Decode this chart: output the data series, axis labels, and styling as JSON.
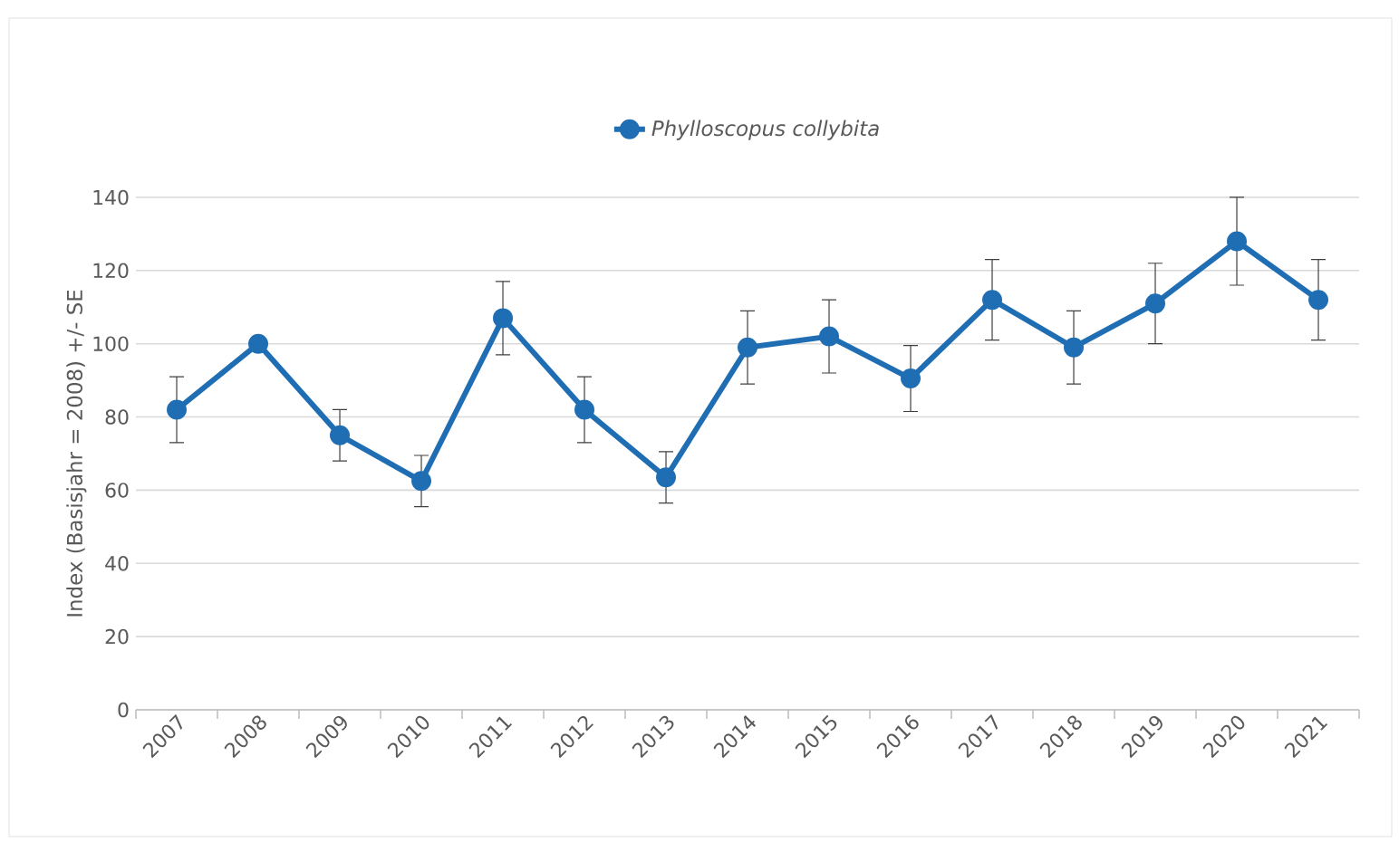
{
  "chart_data": {
    "type": "line",
    "categories": [
      "2007",
      "2008",
      "2009",
      "2010",
      "2011",
      "2012",
      "2013",
      "2014",
      "2015",
      "2016",
      "2017",
      "2018",
      "2019",
      "2020",
      "2021"
    ],
    "series": [
      {
        "name": "*Phylloscopus collybita*",
        "color": "#1f6eb4",
        "values": [
          82,
          100,
          75,
          62.5,
          107,
          82,
          63.5,
          99,
          102,
          90.5,
          112,
          99,
          111,
          128,
          112
        ],
        "errors": [
          9,
          null,
          7,
          7,
          10,
          9,
          7,
          10,
          10,
          9,
          11,
          10,
          11,
          12,
          11
        ]
      }
    ],
    "ylabel": "Index (Basisjahr = 2008) +/- SE",
    "ylim": [
      0,
      140
    ],
    "yticks": [
      0,
      20,
      40,
      60,
      80,
      100,
      120,
      140
    ],
    "grid": "y",
    "legend": "top",
    "marker": "circle",
    "line_style": "solid"
  }
}
